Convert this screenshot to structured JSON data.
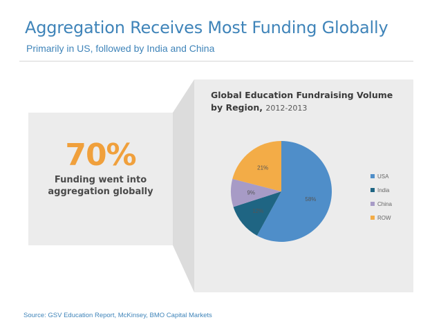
{
  "header": {
    "title": "Aggregation Receives Most Funding Globally",
    "subtitle": "Primarily in US, followed by India and China"
  },
  "callout": {
    "value": "70%",
    "text": "Funding went into aggregation globally",
    "value_color": "#f0a03c"
  },
  "chart_title": "Global Education Fundraising Volume by Region,",
  "chart_subtitle": "2012-2013",
  "chart_data": {
    "type": "pie",
    "categories": [
      "USA",
      "India",
      "China",
      "ROW"
    ],
    "values": [
      58,
      12,
      9,
      21
    ],
    "labels": [
      "58%",
      "12%",
      "9%",
      "21%"
    ],
    "colors": [
      "#4f8ec9",
      "#1f6583",
      "#a79bc6",
      "#f3ac47"
    ],
    "legend_position": "right"
  },
  "source": "Source: GSV Education Report, McKinsey, BMO Capital Markets"
}
